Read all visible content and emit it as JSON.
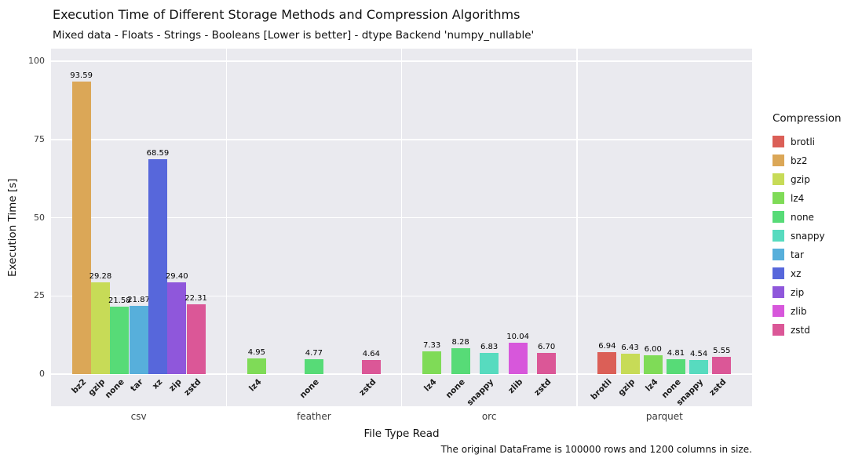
{
  "title": "Execution Time of Different Storage Methods and Compression Algorithms",
  "subtitle": "Mixed data - Floats - Strings - Booleans [Lower is better] - dtype Backend 'numpy_nullable'",
  "footnote": "The original DataFrame is 100000 rows and 1200 columns in size.",
  "chart_data": {
    "type": "bar",
    "title": "Execution Time of Different Storage Methods and Compression Algorithms",
    "subtitle": "Mixed data - Floats - Strings - Booleans [Lower is better] - dtype Backend 'numpy_nullable'",
    "xlabel": "File Type Read",
    "ylabel": "Execution Time [s]",
    "ylim": [
      0,
      104
    ],
    "y_ticks": [
      0,
      25,
      50,
      75,
      100
    ],
    "grid": true,
    "plot_background": "#eaeaef",
    "legend_title": "Compression",
    "legend_position": "right",
    "categories": [
      "csv",
      "feather",
      "orc",
      "parquet"
    ],
    "hues": [
      "brotli",
      "bz2",
      "gzip",
      "lz4",
      "none",
      "snappy",
      "tar",
      "xz",
      "zip",
      "zlib",
      "zstd"
    ],
    "colors": {
      "brotli": "#db5f57",
      "bz2": "#dba757",
      "gzip": "#c7db57",
      "lz4": "#7fdb57",
      "none": "#57db77",
      "snappy": "#57dbbf",
      "tar": "#57afdb",
      "xz": "#5767db",
      "zip": "#8f57db",
      "zlib": "#d757db",
      "zstd": "#db5797"
    },
    "groups": [
      {
        "category": "csv",
        "bars": [
          {
            "compression": "bz2",
            "value": 93.59,
            "label": "93.59"
          },
          {
            "compression": "gzip",
            "value": 29.28,
            "label": "29.28"
          },
          {
            "compression": "none",
            "value": 21.58,
            "label": "21.58"
          },
          {
            "compression": "tar",
            "value": 21.87,
            "label": "21.87"
          },
          {
            "compression": "xz",
            "value": 68.59,
            "label": "68.59"
          },
          {
            "compression": "zip",
            "value": 29.4,
            "label": "29.40"
          },
          {
            "compression": "zstd",
            "value": 22.31,
            "label": "22.31"
          }
        ]
      },
      {
        "category": "feather",
        "bars": [
          {
            "compression": "lz4",
            "value": 4.95,
            "label": "4.95"
          },
          {
            "compression": "none",
            "value": 4.77,
            "label": "4.77"
          },
          {
            "compression": "zstd",
            "value": 4.64,
            "label": "4.64"
          }
        ]
      },
      {
        "category": "orc",
        "bars": [
          {
            "compression": "lz4",
            "value": 7.33,
            "label": "7.33"
          },
          {
            "compression": "none",
            "value": 8.28,
            "label": "8.28"
          },
          {
            "compression": "snappy",
            "value": 6.83,
            "label": "6.83"
          },
          {
            "compression": "zlib",
            "value": 10.04,
            "label": "10.04"
          },
          {
            "compression": "zstd",
            "value": 6.7,
            "label": "6.70"
          }
        ]
      },
      {
        "category": "parquet",
        "bars": [
          {
            "compression": "brotli",
            "value": 6.94,
            "label": "6.94"
          },
          {
            "compression": "gzip",
            "value": 6.43,
            "label": "6.43"
          },
          {
            "compression": "lz4",
            "value": 6.0,
            "label": "6.00"
          },
          {
            "compression": "none",
            "value": 4.81,
            "label": "4.81"
          },
          {
            "compression": "snappy",
            "value": 4.54,
            "label": "4.54"
          },
          {
            "compression": "zstd",
            "value": 5.55,
            "label": "5.55"
          }
        ]
      }
    ]
  }
}
